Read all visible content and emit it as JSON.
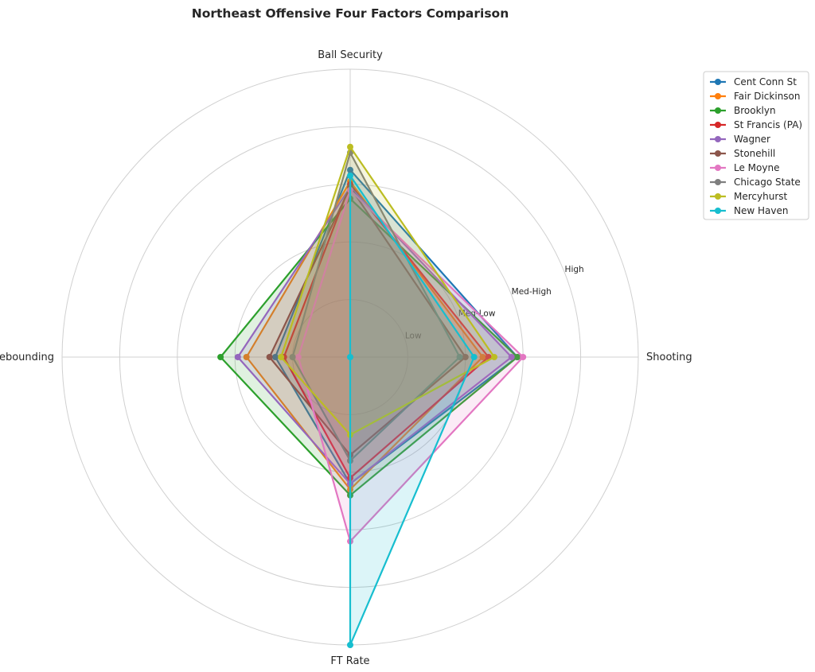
{
  "chart_data": {
    "type": "radar",
    "title": "Northeast Offensive Four Factors Comparison",
    "axes": [
      "Shooting",
      "Ball Security",
      "Off Rebounding",
      "FT Rate"
    ],
    "rmax": 1.0,
    "rings": [
      0.2,
      0.4,
      0.6,
      0.8,
      1.0
    ],
    "ring_labels": [
      {
        "value": 0.2,
        "label": "Low"
      },
      {
        "value": 0.4,
        "label": "Med-Low"
      },
      {
        "value": 0.6,
        "label": "Med-High"
      },
      {
        "value": 0.8,
        "label": "High"
      }
    ],
    "grid": true,
    "legend_position": "top-right",
    "series": [
      {
        "name": "Cent Conn St",
        "color": "#1f77b4",
        "values": [
          0.58,
          0.65,
          0.26,
          0.44
        ]
      },
      {
        "name": "Fair Dickinson",
        "color": "#ff7f0e",
        "values": [
          0.46,
          0.61,
          0.36,
          0.46
        ]
      },
      {
        "name": "Brooklyn",
        "color": "#2ca02c",
        "values": [
          0.58,
          0.55,
          0.45,
          0.48
        ]
      },
      {
        "name": "St Francis (PA)",
        "color": "#d62728",
        "values": [
          0.48,
          0.6,
          0.23,
          0.42
        ]
      },
      {
        "name": "Wagner",
        "color": "#9467bd",
        "values": [
          0.56,
          0.59,
          0.39,
          0.44
        ]
      },
      {
        "name": "Stonehill",
        "color": "#8c564b",
        "values": [
          0.4,
          0.59,
          0.28,
          0.34
        ]
      },
      {
        "name": "Le Moyne",
        "color": "#e377c2",
        "values": [
          0.6,
          0.58,
          0.18,
          0.64
        ]
      },
      {
        "name": "Chicago State",
        "color": "#7f7f7f",
        "values": [
          0.38,
          0.71,
          0.2,
          0.36
        ]
      },
      {
        "name": "Mercyhurst",
        "color": "#bcbd22",
        "values": [
          0.5,
          0.73,
          0.24,
          0.27
        ]
      },
      {
        "name": "New Haven",
        "color": "#17becf",
        "values": [
          0.43,
          0.63,
          0.0,
          1.0
        ]
      }
    ]
  }
}
